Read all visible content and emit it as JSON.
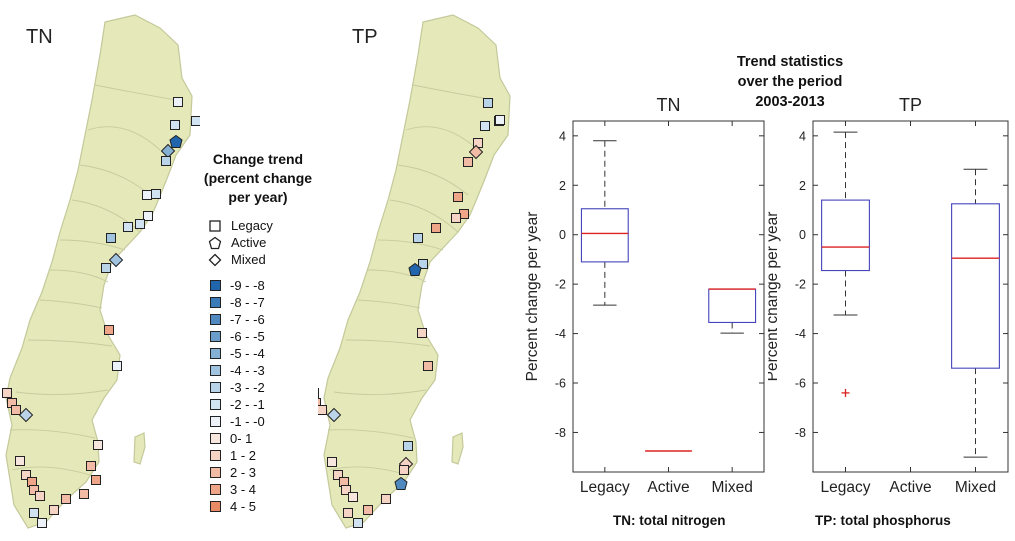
{
  "maps": {
    "left_label": "TN",
    "right_label": "TP"
  },
  "legend": {
    "title_lines": [
      "Change trend",
      "(percent change",
      "per year)"
    ],
    "shapes": [
      {
        "shape": "square",
        "label": "Legacy"
      },
      {
        "shape": "pentagon",
        "label": "Active"
      },
      {
        "shape": "diamond",
        "label": "Mixed"
      }
    ],
    "scale": [
      {
        "label": "-9 - -8",
        "color": "#2166ac"
      },
      {
        "label": "-8 - -7",
        "color": "#3a7bb8"
      },
      {
        "label": "-7 - -6",
        "color": "#5089c0"
      },
      {
        "label": "-6 - -5",
        "color": "#6a9dca"
      },
      {
        "label": "-5 - -4",
        "color": "#84b0d4"
      },
      {
        "label": "-4 - -3",
        "color": "#a0c4e0"
      },
      {
        "label": "-3 - -2",
        "color": "#b9d3e8"
      },
      {
        "label": "-2 - -1",
        "color": "#d1e2f0"
      },
      {
        "label": "-1 - -0",
        "color": "#ecf2f7"
      },
      {
        "label": "0-  1",
        "color": "#f7e6de"
      },
      {
        "label": "1 - 2",
        "color": "#f5d3c5"
      },
      {
        "label": "2 - 3",
        "color": "#f1bba6"
      },
      {
        "label": "3 - 4",
        "color": "#eea588"
      },
      {
        "label": "4 - 5",
        "color": "#e98a66"
      }
    ]
  },
  "trend": {
    "title_lines": [
      "Trend statistics",
      "over the period",
      "2003-2013"
    ],
    "caption_tn": "TN: total nitrogen",
    "caption_tp": "TP: total phosphorus"
  },
  "colors": {
    "map_fill": "#e5e8b9",
    "map_border": "#c4c99a",
    "box_edge": "#4444bb",
    "median": "#dd2222",
    "outlier": "#dd2222"
  },
  "chart_data": [
    {
      "type": "box",
      "title": "TN",
      "ylabel": "Percent change per year",
      "ylim": [
        -9.6,
        4.6
      ],
      "yticks": [
        4,
        2,
        0,
        -2,
        -4,
        -6,
        -8
      ],
      "categories": [
        "Legacy",
        "Active",
        "Mixed"
      ],
      "boxes": [
        {
          "category": "Legacy",
          "whisker_high": 3.8,
          "q3": 1.05,
          "median": 0.05,
          "q1": -1.1,
          "whisker_low": -2.85
        },
        {
          "category": "Active",
          "whisker_high": -8.75,
          "q3": -8.75,
          "median": -8.75,
          "q1": -8.75,
          "whisker_low": -8.75
        },
        {
          "category": "Mixed",
          "whisker_high": -2.2,
          "q3": -2.2,
          "median": -2.2,
          "q1": -3.55,
          "whisker_low": -3.98
        }
      ],
      "outliers": []
    },
    {
      "type": "box",
      "title": "TP",
      "ylabel": "Percent change per year",
      "ylim": [
        -9.6,
        4.6
      ],
      "yticks": [
        4,
        2,
        0,
        -2,
        -4,
        -6,
        -8
      ],
      "categories": [
        "Legacy",
        "Active",
        "Mixed"
      ],
      "boxes": [
        {
          "category": "Legacy",
          "whisker_high": 4.15,
          "q3": 1.4,
          "median": -0.5,
          "q1": -1.45,
          "whisker_low": -3.25
        },
        {
          "category": "Mixed",
          "whisker_high": 2.65,
          "q3": 1.25,
          "median": -0.95,
          "q1": -5.4,
          "whisker_low": -9.0
        }
      ],
      "outliers": [
        {
          "category": "Legacy",
          "value": -6.4
        }
      ]
    }
  ]
}
